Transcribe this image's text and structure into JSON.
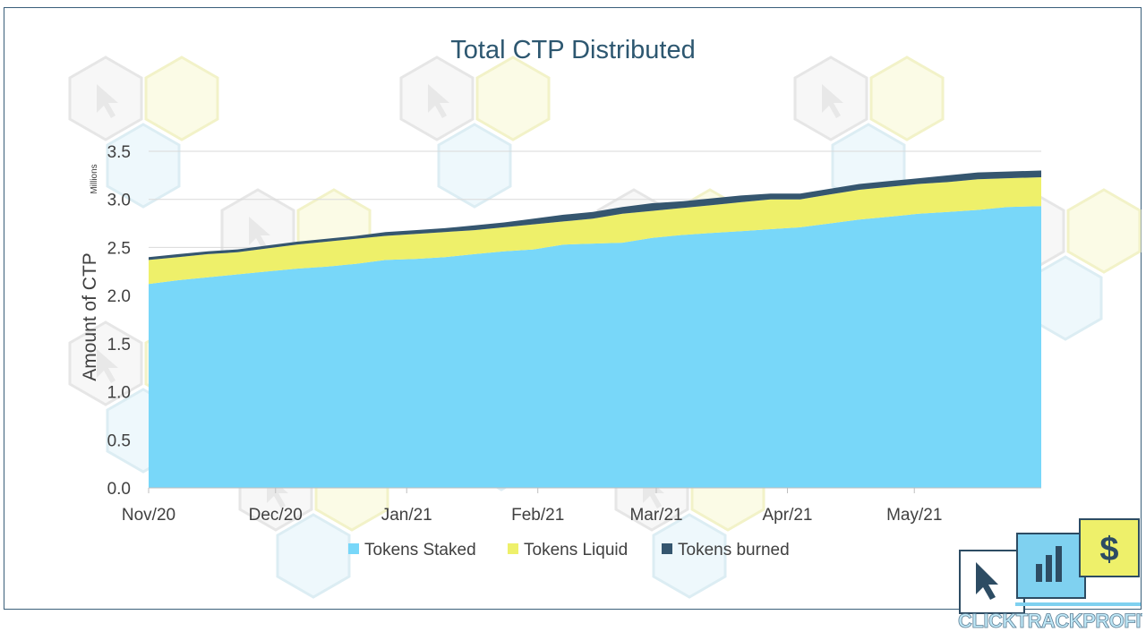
{
  "chart_data": {
    "type": "area",
    "title": "Total CTP Distributed",
    "ylabel": "Amount of CTP",
    "y_unit_label": "Millions",
    "ylim": [
      0,
      3.5
    ],
    "yticks": [
      0.0,
      0.5,
      1.0,
      1.5,
      2.0,
      2.5,
      3.0,
      3.5
    ],
    "ytick_labels": [
      "0.0",
      "0.5",
      "1.0",
      "1.5",
      "2.0",
      "2.5",
      "3.0",
      "3.5"
    ],
    "x_start": "2020-11-01",
    "x_end": "2021-05-31",
    "xticks": [
      {
        "date": "2020-11-01",
        "label": "Nov/20"
      },
      {
        "date": "2020-12-01",
        "label": "Dec/20"
      },
      {
        "date": "2021-01-01",
        "label": "Jan/21"
      },
      {
        "date": "2021-02-01",
        "label": "Feb/21"
      },
      {
        "date": "2021-03-01",
        "label": "Mar/21"
      },
      {
        "date": "2021-04-01",
        "label": "Apr/21"
      },
      {
        "date": "2021-05-01",
        "label": "May/21"
      }
    ],
    "x": [
      "2020-11-01",
      "2020-11-08",
      "2020-11-15",
      "2020-11-22",
      "2020-11-29",
      "2020-12-06",
      "2020-12-13",
      "2020-12-20",
      "2020-12-27",
      "2021-01-03",
      "2021-01-10",
      "2021-01-17",
      "2021-01-24",
      "2021-01-31",
      "2021-02-07",
      "2021-02-14",
      "2021-02-21",
      "2021-02-28",
      "2021-03-07",
      "2021-03-14",
      "2021-03-21",
      "2021-03-28",
      "2021-04-04",
      "2021-04-11",
      "2021-04-18",
      "2021-04-25",
      "2021-05-02",
      "2021-05-09",
      "2021-05-16",
      "2021-05-23",
      "2021-05-31"
    ],
    "series": [
      {
        "name": "Tokens Staked",
        "color": "#78d7f9",
        "values": [
          2.12,
          2.16,
          2.19,
          2.22,
          2.25,
          2.28,
          2.3,
          2.33,
          2.37,
          2.38,
          2.4,
          2.43,
          2.46,
          2.48,
          2.53,
          2.54,
          2.55,
          2.6,
          2.63,
          2.65,
          2.67,
          2.69,
          2.71,
          2.75,
          2.79,
          2.82,
          2.85,
          2.87,
          2.89,
          2.92,
          2.93
        ]
      },
      {
        "name": "Tokens Liquid",
        "color": "#eef06a",
        "values": [
          0.25,
          0.24,
          0.24,
          0.23,
          0.24,
          0.25,
          0.26,
          0.26,
          0.25,
          0.26,
          0.26,
          0.25,
          0.25,
          0.26,
          0.24,
          0.26,
          0.3,
          0.28,
          0.28,
          0.29,
          0.3,
          0.31,
          0.29,
          0.3,
          0.31,
          0.31,
          0.31,
          0.31,
          0.32,
          0.3,
          0.3
        ]
      },
      {
        "name": "Tokens burned",
        "color": "#35566f",
        "values": [
          0.03,
          0.03,
          0.03,
          0.03,
          0.03,
          0.03,
          0.03,
          0.03,
          0.04,
          0.04,
          0.04,
          0.05,
          0.05,
          0.06,
          0.07,
          0.07,
          0.07,
          0.08,
          0.07,
          0.07,
          0.07,
          0.06,
          0.06,
          0.06,
          0.06,
          0.06,
          0.06,
          0.07,
          0.07,
          0.07,
          0.07
        ]
      }
    ],
    "legend_position": "bottom",
    "grid": true
  },
  "logo": {
    "text_1": "CLICK",
    "text_2": "TRACK",
    "text_3": "PROFIT",
    "dollar": "$"
  }
}
